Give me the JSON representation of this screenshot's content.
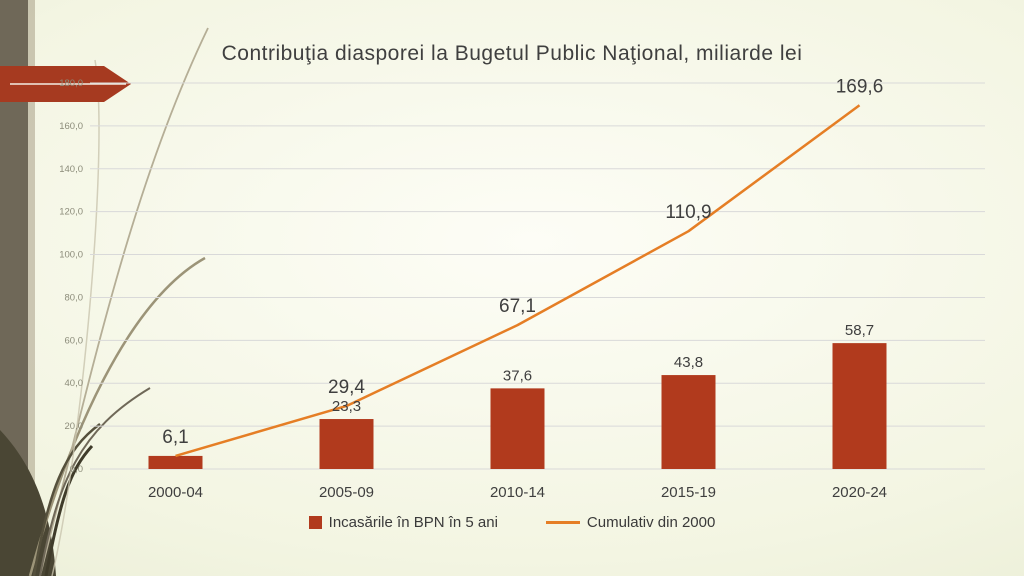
{
  "chart_data": {
    "type": "bar+line",
    "title": "Contribuţia diasporei la Bugetul Public Naţional, miliarde lei",
    "categories": [
      "2000-04",
      "2005-09",
      "2010-14",
      "2015-19",
      "2020-24"
    ],
    "series": [
      {
        "name": "Incasările în  BPN în 5 ani",
        "type": "bar",
        "values": [
          6.1,
          23.3,
          37.6,
          43.8,
          58.7
        ],
        "color": "#b13a1d"
      },
      {
        "name": "Cumulativ din 2000",
        "type": "line",
        "values": [
          6.1,
          29.4,
          67.1,
          110.9,
          169.6
        ],
        "color": "#e57e25"
      }
    ],
    "ylim": [
      0,
      180
    ],
    "ytick_step": 20,
    "decimal_separator": ",",
    "grid": true,
    "legend_position": "bottom"
  },
  "colors": {
    "grid": "#d9d9d9",
    "tick_text": "#8c8c7a",
    "label_text": "#3f3f3f",
    "arrow": "#a63a20",
    "deco_dark": "#6f6858",
    "deco_mid": "#8a8268",
    "deco_light": "#b5ae96"
  }
}
